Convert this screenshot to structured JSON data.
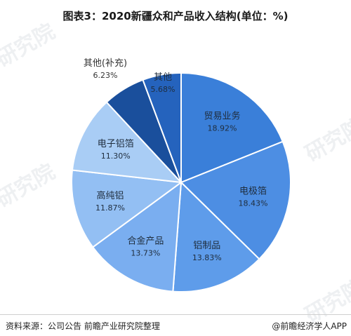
{
  "title": "图表3：2020新疆众和产品收入结构(单位：%)",
  "footer": {
    "source": "资料来源：公司公告 前瞻产业研究院整理",
    "brand": "@前瞻经济学人APP"
  },
  "watermark": "研究院",
  "chart_data": {
    "type": "pie",
    "unit": "%",
    "slices": [
      {
        "label": "贸易业务",
        "value": 18.92,
        "value_label": "18.92%",
        "color": "#3a7fd9"
      },
      {
        "label": "电极箔",
        "value": 18.43,
        "value_label": "18.43%",
        "color": "#4d8ee3"
      },
      {
        "label": "铝制品",
        "value": 13.83,
        "value_label": "13.83%",
        "color": "#5e9cea"
      },
      {
        "label": "合金产品",
        "value": 13.73,
        "value_label": "13.73%",
        "color": "#7aaef0"
      },
      {
        "label": "高纯铝",
        "value": 11.87,
        "value_label": "11.87%",
        "color": "#93bff3"
      },
      {
        "label": "电子铝箔",
        "value": 11.3,
        "value_label": "11.30%",
        "color": "#a9cdf5"
      },
      {
        "label": "其他(补充)",
        "value": 6.23,
        "value_label": "6.23%",
        "color": "#1a4f9c"
      },
      {
        "label": "其他",
        "value": 5.68,
        "value_label": "5.68%",
        "color": "#2563bd"
      }
    ]
  }
}
